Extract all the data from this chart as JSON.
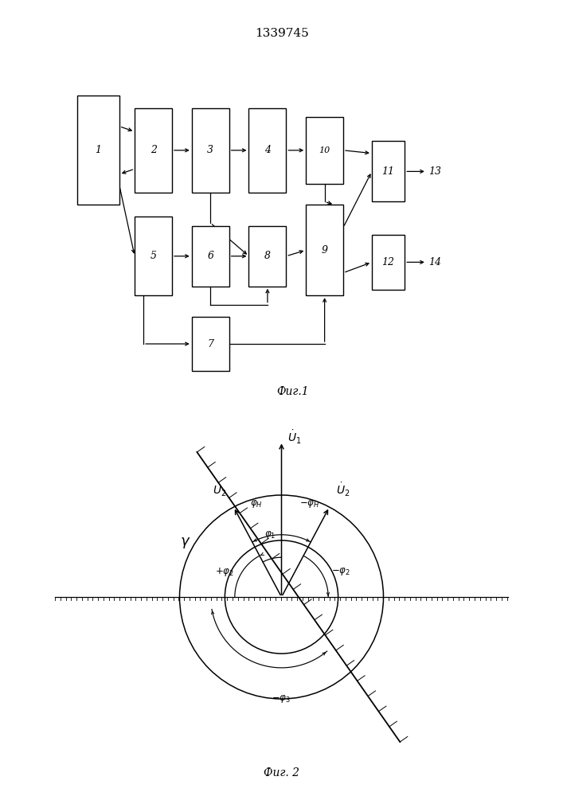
{
  "title": "1339745",
  "fig1_label": "Фиг.1",
  "fig2_label": "Фиг. 2",
  "background_color": "#ffffff"
}
